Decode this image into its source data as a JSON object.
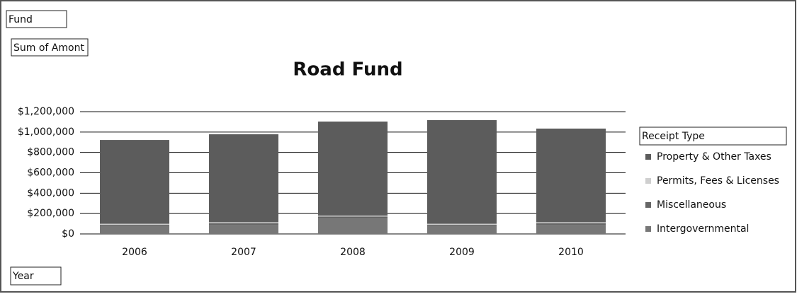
{
  "chart_data": {
    "type": "stacked_bar",
    "title": "Road Fund",
    "filter_field": "Fund",
    "data_field": "Sum of Amont",
    "axis_field": "Year",
    "legend_title": "Receipt Type",
    "categories": [
      "2006",
      "2007",
      "2008",
      "2009",
      "2010"
    ],
    "series": [
      {
        "name": "Property & Other Taxes",
        "color": "#5c5c5c",
        "values": [
          822000,
          863000,
          923000,
          1017000,
          919000
        ]
      },
      {
        "name": "Permits, Fees & Licenses",
        "color": "#cfcfcf",
        "values": [
          10000,
          10000,
          10000,
          10000,
          10000
        ]
      },
      {
        "name": "Miscellaneous",
        "color": "#666666",
        "values": [
          10000,
          15000,
          20000,
          10000,
          15000
        ]
      },
      {
        "name": "Intergovernmental",
        "color": "#777777",
        "values": [
          80000,
          90000,
          150000,
          80000,
          90000
        ]
      }
    ],
    "ylim": [
      0,
      1200000
    ],
    "yticks": [
      {
        "value": 0,
        "label": "$0"
      },
      {
        "value": 200000,
        "label": "$200,000"
      },
      {
        "value": 400000,
        "label": "$400,000"
      },
      {
        "value": 600000,
        "label": "$600,000"
      },
      {
        "value": 800000,
        "label": "$800,000"
      },
      {
        "value": 1000000,
        "label": "$1,000,000"
      },
      {
        "value": 1200000,
        "label": "$1,200,000"
      }
    ],
    "grid": true,
    "legend": "right"
  }
}
